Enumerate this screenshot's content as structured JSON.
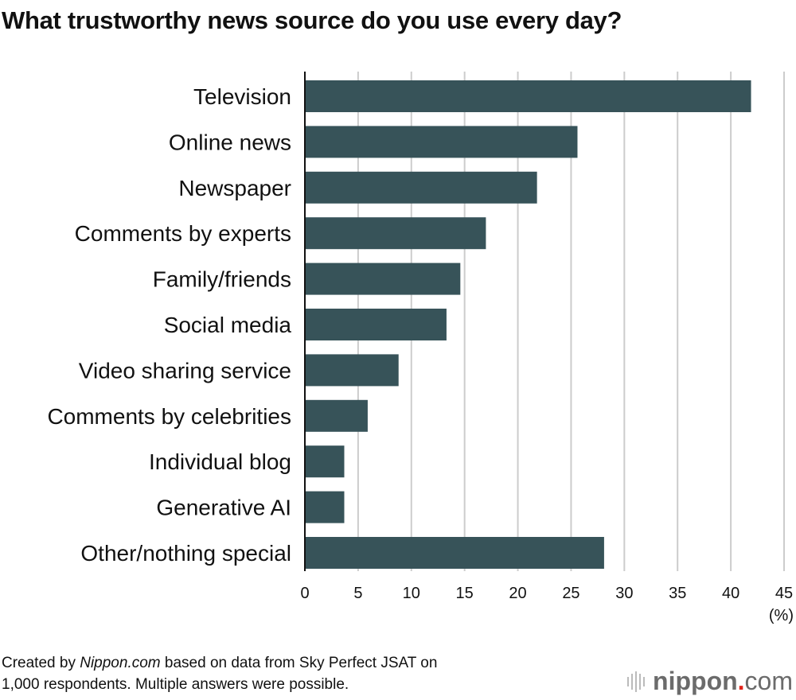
{
  "title": "What trustworthy news source do you use every day?",
  "footer": {
    "prefix": "Created by ",
    "source_italic": "Nippon.com",
    "rest_line1": " based on data from Sky Perfect JSAT on",
    "line2": "1,000 respondents. Multiple answers were possible."
  },
  "logo": {
    "name": "nippon",
    "dot": ".",
    "tld": "com"
  },
  "chart_data": {
    "type": "bar",
    "orientation": "horizontal",
    "title": "What trustworthy news source do you use every day?",
    "categories": [
      "Television",
      "Online news",
      "Newspaper",
      "Comments by experts",
      "Family/friends",
      "Social media",
      "Video sharing service",
      "Comments by celebrities",
      "Individual blog",
      "Generative AI",
      "Other/nothing special"
    ],
    "values": [
      41.9,
      25.6,
      21.8,
      17.0,
      14.6,
      13.3,
      8.8,
      5.9,
      3.7,
      3.7,
      28.1
    ],
    "xlabel": "(%)",
    "xlim": [
      0,
      45
    ],
    "xticks": [
      "0",
      "5",
      "10",
      "15",
      "20",
      "25",
      "30",
      "35",
      "40",
      "45"
    ],
    "grid": true,
    "bar_color": "#375359",
    "grid_color": "#cccccc"
  }
}
